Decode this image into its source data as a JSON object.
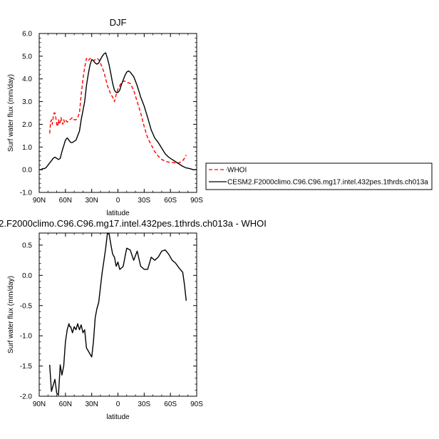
{
  "chart_data": [
    {
      "type": "line",
      "title": "DJF",
      "xlabel": "latitude",
      "ylabel": "Surf water flux (mm/day)",
      "xlim": [
        90,
        -90
      ],
      "ylim": [
        -1.0,
        6.0
      ],
      "x_ticks": [
        90,
        60,
        30,
        0,
        -30,
        -60,
        -90
      ],
      "x_tick_labels": [
        "90N",
        "60N",
        "30N",
        "0",
        "30S",
        "60S",
        "90S"
      ],
      "y_ticks": [
        -1.0,
        0.0,
        1.0,
        2.0,
        3.0,
        4.0,
        5.0,
        6.0
      ],
      "y_tick_labels": [
        "-1.0",
        "0.0",
        "1.0",
        "2.0",
        "3.0",
        "4.0",
        "5.0",
        "6.0"
      ],
      "legend_position": "right",
      "series": [
        {
          "name": "WHOI",
          "color": "#ff0000",
          "dash": "dashed",
          "x": [
            78,
            77,
            76,
            75,
            74,
            73,
            72,
            71,
            70,
            69,
            68,
            67,
            66,
            65,
            64,
            63,
            62,
            61,
            60,
            58,
            55,
            52,
            50,
            48,
            46,
            44,
            42,
            40,
            38,
            36,
            34,
            32,
            30,
            28,
            26,
            24,
            22,
            20,
            18,
            16,
            14,
            12,
            10,
            8,
            6,
            4,
            2,
            0,
            -2,
            -4,
            -6,
            -8,
            -10,
            -14,
            -18,
            -22,
            -26,
            -30,
            -34,
            -38,
            -42,
            -46,
            -50,
            -54,
            -58,
            -62,
            -66,
            -70,
            -74,
            -76,
            -78
          ],
          "y": [
            1.6,
            2.1,
            2.2,
            2.0,
            2.3,
            2.5,
            2.5,
            2.3,
            2.0,
            1.9,
            2.2,
            2.0,
            2.1,
            2.3,
            2.1,
            2.0,
            2.2,
            2.1,
            2.2,
            2.1,
            2.2,
            2.3,
            2.2,
            2.2,
            2.3,
            2.5,
            3.3,
            4.0,
            4.5,
            4.9,
            4.8,
            4.9,
            4.85,
            4.8,
            4.85,
            4.9,
            4.85,
            4.7,
            4.5,
            4.3,
            4.0,
            3.7,
            3.5,
            3.3,
            3.2,
            3.0,
            3.3,
            3.55,
            3.7,
            3.85,
            3.9,
            3.9,
            3.85,
            3.8,
            3.5,
            3.0,
            2.5,
            1.9,
            1.4,
            1.1,
            0.8,
            0.6,
            0.45,
            0.38,
            0.33,
            0.32,
            0.3,
            0.3,
            0.4,
            0.5,
            0.65
          ]
        },
        {
          "name": "CESM2.F2000climo.C96.C96.mg17.intel.432pes.1thrds.ch013a",
          "color": "#000000",
          "dash": "solid",
          "x": [
            90,
            88,
            86,
            84,
            82,
            80,
            78,
            76,
            74,
            72,
            70,
            68,
            66,
            64,
            62,
            60,
            58,
            56,
            54,
            52,
            50,
            48,
            46,
            44,
            42,
            40,
            38,
            36,
            34,
            32,
            30,
            28,
            26,
            24,
            22,
            20,
            18,
            16,
            14,
            12,
            10,
            8,
            6,
            4,
            2,
            0,
            -2,
            -4,
            -6,
            -8,
            -10,
            -12,
            -14,
            -16,
            -18,
            -20,
            -22,
            -24,
            -26,
            -28,
            -30,
            -34,
            -38,
            -42,
            -46,
            -50,
            -54,
            -58,
            -62,
            -66,
            -70,
            -74,
            -78,
            -82,
            -86,
            -90
          ],
          "y": [
            0.0,
            0.0,
            0.05,
            0.05,
            0.1,
            0.2,
            0.3,
            0.4,
            0.5,
            0.55,
            0.5,
            0.45,
            0.5,
            0.8,
            1.05,
            1.3,
            1.4,
            1.3,
            1.2,
            1.2,
            1.25,
            1.3,
            1.5,
            1.7,
            2.2,
            2.6,
            3.0,
            3.7,
            4.2,
            4.6,
            4.85,
            4.8,
            4.7,
            4.65,
            4.7,
            4.85,
            5.0,
            5.1,
            5.15,
            4.9,
            4.6,
            4.2,
            3.8,
            3.5,
            3.4,
            3.4,
            3.5,
            3.75,
            3.95,
            4.15,
            4.3,
            4.35,
            4.3,
            4.2,
            4.1,
            3.9,
            3.7,
            3.45,
            3.2,
            3.0,
            2.8,
            2.3,
            1.75,
            1.4,
            1.2,
            0.95,
            0.7,
            0.55,
            0.45,
            0.35,
            0.25,
            0.15,
            0.08,
            0.05,
            0.0,
            0.0
          ]
        }
      ]
    },
    {
      "type": "line",
      "title": "2.F2000climo.C96.C96.mg17.intel.432pes.1thrds.ch013a - WHOI",
      "xlabel": "latitude",
      "ylabel": "Surf water flux (mm/day)",
      "xlim": [
        90,
        -90
      ],
      "ylim": [
        -2.0,
        0.7
      ],
      "x_ticks": [
        90,
        60,
        30,
        0,
        -30,
        -60,
        -90
      ],
      "x_tick_labels": [
        "90N",
        "60N",
        "30N",
        "0",
        "30S",
        "60S",
        "90S"
      ],
      "y_ticks": [
        -2.0,
        -1.5,
        -1.0,
        -0.5,
        0.0,
        0.5
      ],
      "y_tick_labels": [
        "-2.0",
        "-1.5",
        "-1.0",
        "-0.5",
        "0.0",
        "0.5"
      ],
      "series": [
        {
          "color": "#000000",
          "dash": "solid",
          "x": [
            78,
            76,
            74,
            72,
            70,
            68,
            67,
            66,
            64,
            62,
            60,
            58,
            56,
            55,
            54,
            52,
            50,
            48,
            46,
            44,
            42,
            40,
            38,
            36,
            34,
            32,
            30,
            28,
            26,
            24,
            22,
            20,
            18,
            16,
            14,
            12,
            10,
            8,
            6,
            4,
            2,
            0,
            -2,
            -4,
            -6,
            -8,
            -10,
            -14,
            -18,
            -22,
            -26,
            -30,
            -34,
            -38,
            -42,
            -46,
            -50,
            -54,
            -58,
            -62,
            -66,
            -70,
            -74,
            -76,
            -78
          ],
          "y": [
            -1.48,
            -1.92,
            -1.82,
            -1.72,
            -1.95,
            -1.98,
            -1.75,
            -1.48,
            -1.65,
            -1.5,
            -1.1,
            -0.9,
            -0.8,
            -0.85,
            -0.85,
            -0.95,
            -0.85,
            -0.9,
            -0.8,
            -0.9,
            -0.82,
            -0.95,
            -0.9,
            -1.2,
            -1.25,
            -1.3,
            -1.35,
            -1.1,
            -0.7,
            -0.55,
            -0.45,
            -0.2,
            0.05,
            0.25,
            0.45,
            0.7,
            0.68,
            0.5,
            0.35,
            0.3,
            0.15,
            0.22,
            0.1,
            0.12,
            0.15,
            0.3,
            0.45,
            0.42,
            0.25,
            0.4,
            0.15,
            0.1,
            0.1,
            0.3,
            0.25,
            0.3,
            0.4,
            0.42,
            0.35,
            0.25,
            0.2,
            0.12,
            0.05,
            -0.15,
            -0.42
          ]
        }
      ]
    }
  ]
}
